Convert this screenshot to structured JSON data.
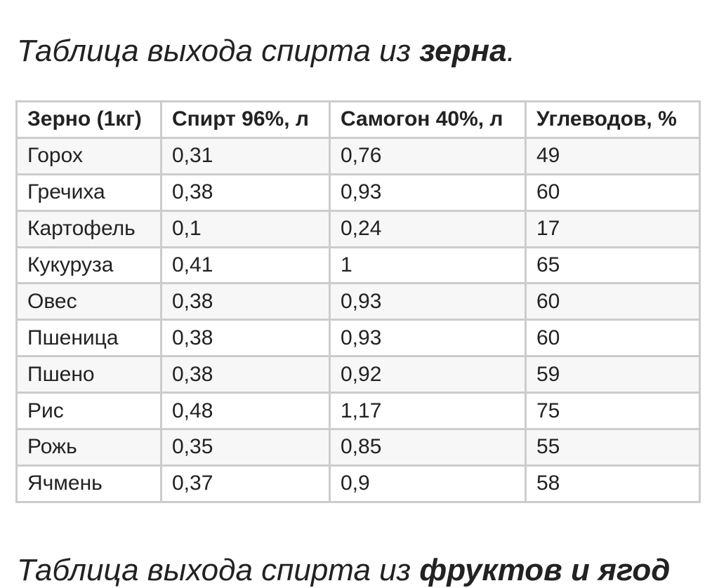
{
  "heading": {
    "text": "Таблица выхода спирта из ",
    "bold": "зерна",
    "end": "."
  },
  "table": {
    "header": [
      "Зерно (1кг)",
      "Спирт 96%, л",
      "Самогон 40%, л",
      "Углеводов, %"
    ],
    "rows": [
      [
        "Горох",
        "0,31",
        "0,76",
        "49"
      ],
      [
        "Гречиха",
        "0,38",
        "0,93",
        "60"
      ],
      [
        "Картофель",
        "0,1",
        "0,24",
        "17"
      ],
      [
        "Кукуруза",
        "0,41",
        "1",
        "65"
      ],
      [
        "Овес",
        "0,38",
        "0,93",
        "60"
      ],
      [
        "Пшеница",
        "0,38",
        "0,93",
        "60"
      ],
      [
        "Пшено",
        "0,38",
        "0,92",
        "59"
      ],
      [
        "Рис",
        "0,48",
        "1,17",
        "75"
      ],
      [
        "Рожь",
        "0,35",
        "0,85",
        "55"
      ],
      [
        "Ячмень",
        "0,37",
        "0,9",
        "58"
      ]
    ]
  },
  "heading2": {
    "text": "Таблица выхода спирта из ",
    "bold": "фруктов и ягод"
  }
}
